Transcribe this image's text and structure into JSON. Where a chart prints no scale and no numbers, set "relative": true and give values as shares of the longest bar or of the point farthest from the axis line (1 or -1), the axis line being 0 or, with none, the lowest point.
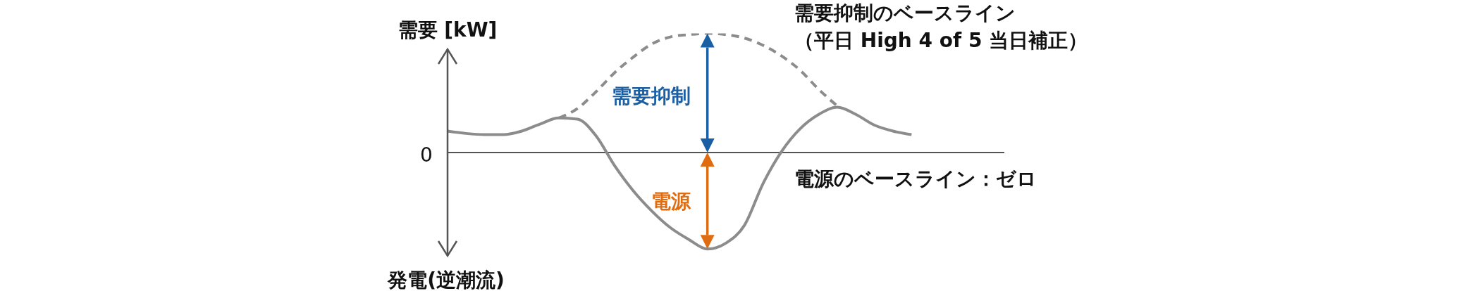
{
  "chart_data": {
    "type": "line",
    "relative": true,
    "ylabel": "需要 [kW]",
    "marker": "none",
    "line_style": "solid",
    "categories": [
      null,
      null,
      null,
      null,
      null,
      null,
      null,
      null,
      null,
      null,
      null,
      null,
      null,
      null,
      null,
      null,
      null,
      null,
      null,
      null,
      null,
      null,
      null,
      null,
      null,
      null,
      null,
      null,
      null,
      null,
      null
    ],
    "series": [
      {
        "color": "#8c8c8c",
        "values": [
          0.18,
          0.16,
          0.15,
          0.15,
          0.18,
          0.24,
          0.29,
          0.28,
          0.14,
          -0.11,
          -0.32,
          -0.49,
          -0.63,
          -0.73,
          -0.81,
          -0.76,
          -0.61,
          -0.26,
          0.01,
          0.2,
          0.32,
          0.38,
          0.32,
          0.23,
          0.18,
          0.15,
          null,
          null,
          null,
          null,
          null
        ]
      },
      {
        "name": "需要抑制のベースライン（平日 High 4 of 5 当日補正）",
        "color": "#8c8c8c",
        "line_style": "dashed",
        "values": [
          null,
          null,
          null,
          null,
          null,
          null,
          0.29,
          0.37,
          0.51,
          0.67,
          0.8,
          0.91,
          0.97,
          0.99,
          1,
          0.99,
          0.96,
          0.9,
          0.81,
          0.69,
          0.53,
          0.39,
          null,
          null,
          null,
          null,
          null,
          null,
          null,
          null,
          null
        ]
      }
    ],
    "ref_lines": [
      {
        "axis": "y",
        "value": 0,
        "label": "電源のベースライン：ゼロ",
        "color": "#555555"
      }
    ],
    "annotations": [
      "0",
      "需要抑制",
      "電源",
      "発電(逆潮流)"
    ]
  }
}
